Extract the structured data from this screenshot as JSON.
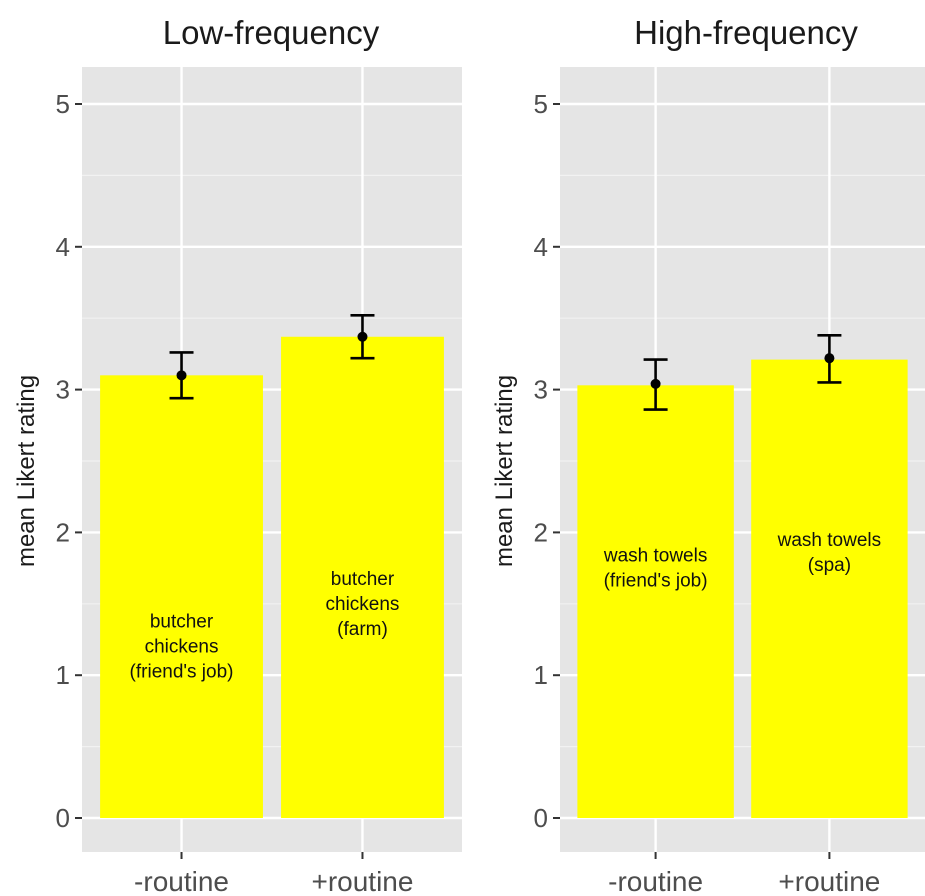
{
  "chart_data": [
    {
      "type": "bar",
      "title": "Low-frequency",
      "ylabel": "mean Likert rating",
      "xlabel": "",
      "ylim": [
        0,
        5
      ],
      "yticks": [
        0,
        1,
        2,
        3,
        4,
        5
      ],
      "grid": true,
      "categories": [
        "-routine",
        "+routine"
      ],
      "values": [
        3.1,
        3.37
      ],
      "means": [
        3.1,
        3.37
      ],
      "error_bars": [
        [
          2.94,
          3.26
        ],
        [
          3.22,
          3.52
        ]
      ],
      "bar_labels": [
        [
          "butcher",
          "chickens",
          "(friend's job)"
        ],
        [
          "butcher",
          "chickens",
          "(farm)"
        ]
      ],
      "bar_label_y": [
        1.2,
        1.5
      ],
      "bar_color": "#FFFF00",
      "panel_color": "#E5E5E5"
    },
    {
      "type": "bar",
      "title": "High-frequency",
      "ylabel": "mean Likert rating",
      "xlabel": "",
      "ylim": [
        0,
        5
      ],
      "yticks": [
        0,
        1,
        2,
        3,
        4,
        5
      ],
      "grid": true,
      "categories": [
        "-routine",
        "+routine"
      ],
      "values": [
        3.03,
        3.21
      ],
      "means": [
        3.04,
        3.22
      ],
      "error_bars": [
        [
          2.86,
          3.21
        ],
        [
          3.05,
          3.38
        ]
      ],
      "bar_labels": [
        [
          "wash towels",
          "(friend's job)"
        ],
        [
          "wash towels",
          "(spa)"
        ]
      ],
      "bar_label_y": [
        1.75,
        1.86
      ],
      "bar_color": "#FFFF00",
      "panel_color": "#E5E5E5"
    }
  ]
}
